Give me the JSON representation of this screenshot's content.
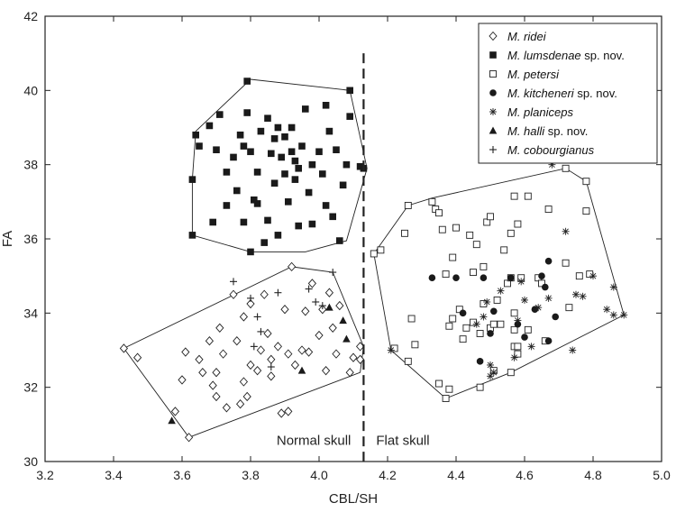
{
  "chart_data": {
    "type": "scatter",
    "xlabel": "CBL/SH",
    "ylabel": "FA",
    "xlim": [
      3.2,
      5.0
    ],
    "ylim": [
      30,
      42
    ],
    "xticks": [
      "3.2",
      "3.4",
      "3.6",
      "3.8",
      "4.0",
      "4.2",
      "4.4",
      "4.6",
      "4.8",
      "5.0"
    ],
    "yticks": [
      "30",
      "32",
      "34",
      "36",
      "38",
      "40",
      "42"
    ],
    "divider_x": 4.13,
    "region_labels": {
      "left": "Normal skull",
      "right": "Flat skull"
    },
    "legend_position": "top-right",
    "series": [
      {
        "name": "M. ridei",
        "name_italic": "M. ridei",
        "name_suffix": "",
        "marker": "diamond-open",
        "points": [
          [
            3.43,
            33.05
          ],
          [
            3.47,
            32.8
          ],
          [
            3.58,
            31.35
          ],
          [
            3.62,
            30.65
          ],
          [
            3.61,
            32.95
          ],
          [
            3.6,
            32.2
          ],
          [
            3.65,
            32.75
          ],
          [
            3.66,
            32.4
          ],
          [
            3.68,
            33.25
          ],
          [
            3.69,
            32.05
          ],
          [
            3.7,
            31.75
          ],
          [
            3.7,
            32.4
          ],
          [
            3.71,
            33.6
          ],
          [
            3.72,
            32.9
          ],
          [
            3.73,
            31.45
          ],
          [
            3.75,
            34.5
          ],
          [
            3.76,
            33.25
          ],
          [
            3.77,
            31.55
          ],
          [
            3.78,
            32.15
          ],
          [
            3.78,
            33.9
          ],
          [
            3.79,
            31.75
          ],
          [
            3.8,
            34.25
          ],
          [
            3.8,
            32.6
          ],
          [
            3.82,
            32.45
          ],
          [
            3.83,
            33.0
          ],
          [
            3.84,
            34.5
          ],
          [
            3.85,
            33.45
          ],
          [
            3.86,
            32.75
          ],
          [
            3.86,
            32.3
          ],
          [
            3.88,
            33.1
          ],
          [
            3.89,
            31.3
          ],
          [
            3.9,
            34.1
          ],
          [
            3.91,
            31.35
          ],
          [
            3.91,
            32.9
          ],
          [
            3.92,
            35.25
          ],
          [
            3.93,
            32.6
          ],
          [
            3.95,
            33.0
          ],
          [
            3.96,
            34.05
          ],
          [
            3.97,
            32.95
          ],
          [
            3.98,
            34.8
          ],
          [
            4.0,
            33.4
          ],
          [
            4.01,
            34.1
          ],
          [
            4.02,
            32.45
          ],
          [
            4.03,
            34.55
          ],
          [
            4.04,
            33.6
          ],
          [
            4.05,
            32.9
          ],
          [
            4.06,
            34.2
          ],
          [
            4.09,
            32.4
          ],
          [
            4.1,
            32.8
          ],
          [
            4.12,
            33.1
          ],
          [
            4.12,
            32.75
          ]
        ]
      },
      {
        "name": "M. lumsdenae sp. nov.",
        "name_italic": "M. lumsdenae",
        "name_suffix": " sp. nov.",
        "marker": "square-filled",
        "points": [
          [
            3.63,
            37.6
          ],
          [
            3.63,
            36.1
          ],
          [
            3.64,
            38.8
          ],
          [
            3.65,
            38.5
          ],
          [
            3.68,
            39.05
          ],
          [
            3.69,
            36.45
          ],
          [
            3.7,
            38.4
          ],
          [
            3.71,
            39.35
          ],
          [
            3.73,
            37.8
          ],
          [
            3.73,
            36.9
          ],
          [
            3.75,
            38.2
          ],
          [
            3.76,
            37.3
          ],
          [
            3.77,
            38.8
          ],
          [
            3.78,
            38.5
          ],
          [
            3.78,
            36.45
          ],
          [
            3.79,
            39.4
          ],
          [
            3.79,
            40.25
          ],
          [
            3.8,
            35.65
          ],
          [
            3.8,
            38.35
          ],
          [
            3.81,
            37.05
          ],
          [
            3.82,
            37.8
          ],
          [
            3.82,
            36.95
          ],
          [
            3.83,
            38.9
          ],
          [
            3.84,
            35.9
          ],
          [
            3.85,
            39.25
          ],
          [
            3.85,
            36.5
          ],
          [
            3.86,
            38.3
          ],
          [
            3.87,
            37.5
          ],
          [
            3.87,
            38.7
          ],
          [
            3.88,
            39.0
          ],
          [
            3.88,
            36.1
          ],
          [
            3.89,
            38.2
          ],
          [
            3.9,
            37.75
          ],
          [
            3.9,
            38.75
          ],
          [
            3.91,
            37.0
          ],
          [
            3.92,
            38.35
          ],
          [
            3.92,
            39.0
          ],
          [
            3.93,
            37.6
          ],
          [
            3.93,
            38.1
          ],
          [
            3.94,
            36.35
          ],
          [
            3.94,
            37.9
          ],
          [
            3.95,
            38.5
          ],
          [
            3.96,
            39.5
          ],
          [
            3.97,
            37.25
          ],
          [
            3.98,
            36.4
          ],
          [
            3.98,
            38.0
          ],
          [
            4.0,
            38.35
          ],
          [
            4.01,
            37.75
          ],
          [
            4.02,
            36.9
          ],
          [
            4.02,
            39.6
          ],
          [
            4.03,
            38.9
          ],
          [
            4.04,
            36.6
          ],
          [
            4.05,
            38.4
          ],
          [
            4.06,
            35.95
          ],
          [
            4.07,
            37.45
          ],
          [
            4.08,
            38.0
          ],
          [
            4.09,
            39.3
          ],
          [
            4.09,
            40.0
          ],
          [
            4.12,
            37.95
          ],
          [
            4.13,
            37.9
          ]
        ]
      },
      {
        "name": "M. petersi",
        "name_italic": "M. petersi",
        "name_suffix": "",
        "marker": "square-open",
        "points": [
          [
            4.16,
            35.6
          ],
          [
            4.18,
            35.7
          ],
          [
            4.22,
            33.05
          ],
          [
            4.25,
            36.15
          ],
          [
            4.26,
            36.9
          ],
          [
            4.26,
            32.7
          ],
          [
            4.27,
            33.85
          ],
          [
            4.28,
            33.15
          ],
          [
            4.33,
            37.0
          ],
          [
            4.34,
            36.8
          ],
          [
            4.35,
            36.7
          ],
          [
            4.35,
            32.1
          ],
          [
            4.37,
            31.7
          ],
          [
            4.38,
            31.95
          ],
          [
            4.36,
            36.25
          ],
          [
            4.37,
            35.05
          ],
          [
            4.38,
            33.65
          ],
          [
            4.39,
            35.5
          ],
          [
            4.39,
            33.85
          ],
          [
            4.4,
            36.3
          ],
          [
            4.41,
            34.1
          ],
          [
            4.42,
            33.3
          ],
          [
            4.43,
            33.6
          ],
          [
            4.44,
            36.1
          ],
          [
            4.45,
            33.75
          ],
          [
            4.45,
            35.1
          ],
          [
            4.46,
            35.85
          ],
          [
            4.47,
            32.0
          ],
          [
            4.47,
            33.45
          ],
          [
            4.48,
            35.25
          ],
          [
            4.48,
            34.25
          ],
          [
            4.49,
            36.45
          ],
          [
            4.5,
            36.6
          ],
          [
            4.5,
            33.6
          ],
          [
            4.51,
            32.45
          ],
          [
            4.51,
            33.7
          ],
          [
            4.52,
            34.35
          ],
          [
            4.53,
            33.7
          ],
          [
            4.54,
            35.7
          ],
          [
            4.55,
            34.8
          ],
          [
            4.56,
            34.95
          ],
          [
            4.56,
            36.15
          ],
          [
            4.56,
            32.4
          ],
          [
            4.57,
            33.1
          ],
          [
            4.57,
            33.55
          ],
          [
            4.57,
            34.0
          ],
          [
            4.57,
            37.15
          ],
          [
            4.58,
            33.1
          ],
          [
            4.58,
            36.4
          ],
          [
            4.58,
            32.9
          ],
          [
            4.59,
            34.95
          ],
          [
            4.61,
            33.55
          ],
          [
            4.61,
            37.15
          ],
          [
            4.64,
            34.95
          ],
          [
            4.65,
            34.8
          ],
          [
            4.66,
            33.25
          ],
          [
            4.67,
            36.8
          ],
          [
            4.72,
            37.9
          ],
          [
            4.72,
            35.35
          ],
          [
            4.73,
            34.15
          ],
          [
            4.76,
            35.0
          ],
          [
            4.78,
            36.75
          ],
          [
            4.78,
            37.55
          ],
          [
            4.79,
            35.05
          ]
        ]
      },
      {
        "name": "M. kitcheneri sp. nov.",
        "name_italic": "M. kitcheneri",
        "name_suffix": " sp. nov.",
        "marker": "circle-filled",
        "points": [
          [
            4.33,
            34.95
          ],
          [
            4.4,
            34.95
          ],
          [
            4.42,
            34.0
          ],
          [
            4.47,
            32.7
          ],
          [
            4.48,
            34.95
          ],
          [
            4.5,
            33.45
          ],
          [
            4.51,
            34.05
          ],
          [
            4.56,
            34.95
          ],
          [
            4.58,
            33.7
          ],
          [
            4.6,
            33.35
          ],
          [
            4.63,
            34.1
          ],
          [
            4.65,
            35.0
          ],
          [
            4.66,
            34.7
          ],
          [
            4.67,
            35.4
          ],
          [
            4.67,
            33.25
          ],
          [
            4.69,
            33.9
          ]
        ]
      },
      {
        "name": "M. planiceps",
        "name_italic": "M. planiceps",
        "name_suffix": "",
        "marker": "asterisk",
        "points": [
          [
            4.21,
            33.0
          ],
          [
            4.46,
            33.7
          ],
          [
            4.48,
            33.9
          ],
          [
            4.49,
            34.3
          ],
          [
            4.5,
            32.6
          ],
          [
            4.5,
            32.3
          ],
          [
            4.51,
            32.4
          ],
          [
            4.53,
            34.6
          ],
          [
            4.57,
            32.8
          ],
          [
            4.58,
            33.8
          ],
          [
            4.59,
            34.85
          ],
          [
            4.6,
            34.35
          ],
          [
            4.62,
            33.1
          ],
          [
            4.64,
            34.15
          ],
          [
            4.68,
            38.0
          ],
          [
            4.67,
            34.4
          ],
          [
            4.72,
            36.2
          ],
          [
            4.74,
            33.0
          ],
          [
            4.75,
            34.5
          ],
          [
            4.77,
            34.45
          ],
          [
            4.8,
            35.0
          ],
          [
            4.84,
            34.1
          ],
          [
            4.86,
            34.7
          ],
          [
            4.86,
            33.95
          ],
          [
            4.89,
            33.95
          ]
        ]
      },
      {
        "name": "M. halli sp. nov.",
        "name_italic": "M. halli",
        "name_suffix": " sp. nov.",
        "marker": "triangle-filled",
        "points": [
          [
            3.57,
            31.1
          ],
          [
            3.95,
            32.45
          ],
          [
            4.03,
            34.15
          ],
          [
            4.07,
            33.8
          ],
          [
            4.08,
            33.3
          ]
        ]
      },
      {
        "name": "M. cobourgianus",
        "name_italic": "M. cobourgianus",
        "name_suffix": "",
        "marker": "plus",
        "points": [
          [
            3.75,
            34.85
          ],
          [
            3.8,
            34.4
          ],
          [
            3.81,
            33.1
          ],
          [
            3.82,
            33.9
          ],
          [
            3.83,
            33.5
          ],
          [
            3.86,
            32.55
          ],
          [
            3.88,
            34.55
          ],
          [
            3.97,
            34.65
          ],
          [
            3.99,
            34.3
          ],
          [
            4.01,
            34.2
          ],
          [
            4.04,
            35.1
          ]
        ]
      }
    ],
    "hulls": [
      [
        [
          3.43,
          33.05
        ],
        [
          3.62,
          30.65
        ],
        [
          4.12,
          32.4
        ],
        [
          4.13,
          33.1
        ],
        [
          4.04,
          35.1
        ],
        [
          3.92,
          35.25
        ]
      ],
      [
        [
          3.63,
          37.6
        ],
        [
          3.64,
          38.9
        ],
        [
          3.8,
          40.3
        ],
        [
          4.09,
          40.0
        ],
        [
          4.14,
          37.9
        ],
        [
          4.08,
          35.95
        ],
        [
          3.96,
          35.65
        ],
        [
          3.8,
          35.65
        ],
        [
          3.63,
          36.1
        ]
      ],
      [
        [
          4.16,
          35.6
        ],
        [
          4.26,
          36.9
        ],
        [
          4.33,
          37.1
        ],
        [
          4.72,
          37.9
        ],
        [
          4.78,
          37.55
        ],
        [
          4.89,
          33.95
        ],
        [
          4.56,
          32.4
        ],
        [
          4.37,
          31.7
        ],
        [
          4.21,
          33.0
        ]
      ]
    ]
  }
}
